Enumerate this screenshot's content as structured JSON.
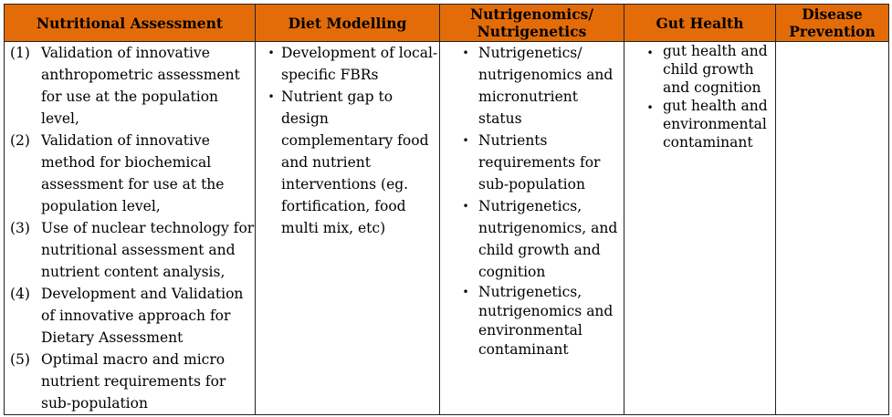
{
  "table": {
    "header_color": "#E36C09",
    "headers": [
      "Nutritional Assessment",
      "Diet Modelling",
      "Nutrigenomics/\nNutrigenetics",
      "Gut Health",
      "Disease\nPrevention"
    ],
    "columns": {
      "nutritional_assessment": [
        {
          "marker": "(1)",
          "text": "Validation of innovative anthropometric assessment for use at the population level,"
        },
        {
          "marker": "(2)",
          "text": "Validation of innovative method for biochemical assessment for use at the population level,"
        },
        {
          "marker": "(3)",
          "text": "Use of nuclear technology for nutritional assessment and nutrient content analysis,"
        },
        {
          "marker": "(4)",
          "text": "Development and Validation of innovative approach for Dietary Assessment"
        },
        {
          "marker": "(5)",
          "text": "Optimal macro and micro nutrient requirements for sub-population"
        }
      ],
      "diet_modelling": [
        "Development of local-specific FBRs",
        "Nutrient gap to design complementary food and nutrient interventions (eg. fortification, food multi mix, etc)"
      ],
      "nutrigenomics": [
        "Nutrigenetics/ nutrigenomics and micronutrient status",
        "Nutrients requirements for sub-population",
        "Nutrigenetics, nutrigenomics, and child growth and cognition",
        "Nutrigenetics, nutrigenomics and environmental contaminant"
      ],
      "gut_health": [
        "gut health and child growth and cognition",
        "gut health and environmental contaminant"
      ],
      "disease_prevention": []
    },
    "bullet_glyph": "•"
  }
}
